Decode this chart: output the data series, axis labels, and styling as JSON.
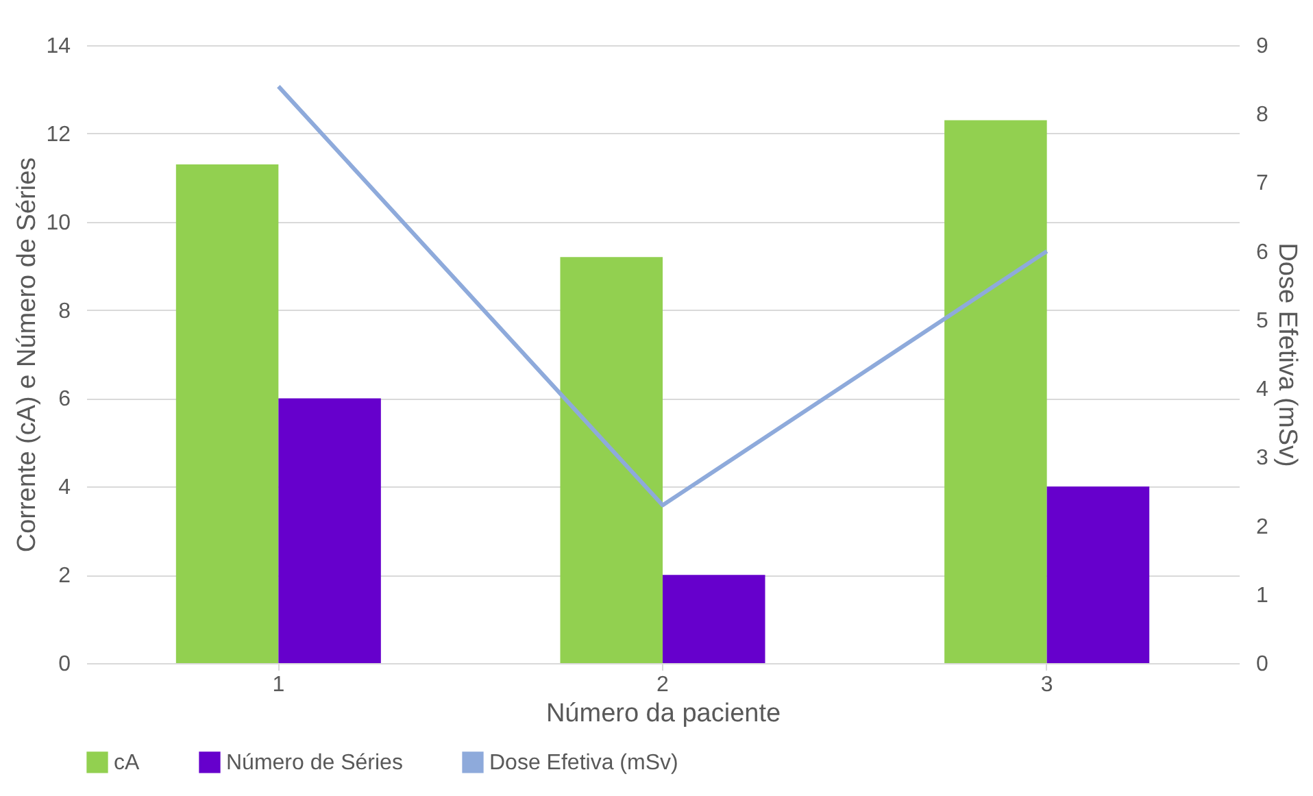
{
  "chart_data": {
    "type": "bar",
    "xlabel": "Número da paciente",
    "ylabel": "Corrente (cA) e Número de Séries",
    "y2label": "Dose Efetiva (mSv)",
    "categories": [
      "1",
      "2",
      "3"
    ],
    "series": [
      {
        "name": "cA",
        "color": "#92d050",
        "values": [
          11.3,
          9.2,
          12.3
        ]
      },
      {
        "name": "Número de Séries",
        "color": "#6600cc",
        "values": [
          6,
          2,
          4
        ]
      },
      {
        "name": "Dose Efetiva (mSv)",
        "color": "#8eaadb",
        "type": "line",
        "axis": "y2",
        "values": [
          8.4,
          2.3,
          6.0
        ]
      }
    ],
    "ylim": [
      0,
      14
    ],
    "yticks": [
      0,
      2,
      4,
      6,
      8,
      10,
      12,
      14
    ],
    "y2lim": [
      0,
      9
    ],
    "y2ticks": [
      0,
      1,
      2,
      3,
      4,
      5,
      6,
      7,
      8,
      9
    ],
    "grid": "y",
    "legend": "bottom"
  }
}
